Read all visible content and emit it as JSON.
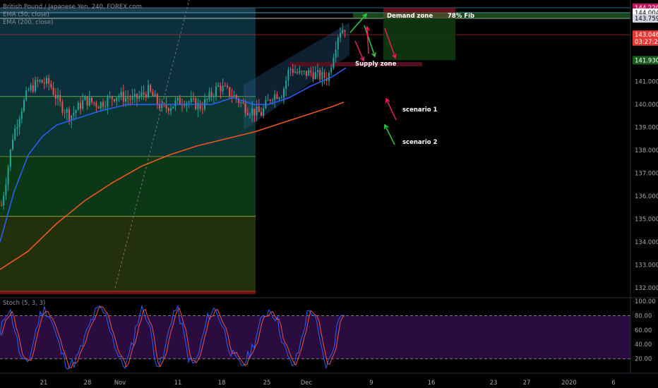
{
  "header": {
    "title": "British Pound / Japanese Yen, 240, FOREX.com",
    "ema1_label": "EMA (50, close)",
    "ema2_label": "EMA (200, close)",
    "stoch_label": "Stoch (5, 3, 3)"
  },
  "chart_data": [
    {
      "type": "candlestick",
      "ylim": [
        131.7,
        144.4
      ],
      "y_ticks": [
        132.0,
        133.0,
        134.0,
        135.0,
        136.0,
        137.0,
        138.0,
        139.0,
        140.0,
        141.0
      ],
      "y_tick_labels": [
        "132.000",
        "133.000",
        "134.000",
        "135.000",
        "136.000",
        "137.000",
        "138.000",
        "139.000",
        "140.000",
        "141.000"
      ],
      "x_tick_labels": [
        "21",
        "28",
        "Nov",
        "11",
        "18",
        "25",
        "Dec",
        "9",
        "16",
        "23",
        "27",
        "2020",
        "6"
      ],
      "price_labels": [
        {
          "value": 144.22,
          "text": "144.220",
          "bg": "#c2185b"
        },
        {
          "value": 144.004,
          "text": "144.004",
          "bg": "#ffffff"
        },
        {
          "value": 143.759,
          "text": "143.759",
          "bg": "#d1d4dc"
        },
        {
          "value": 143.046,
          "text": "143.046",
          "bg": "#e53935"
        },
        {
          "value": 142.75,
          "text": "03:27:20",
          "bg": "#e53935"
        },
        {
          "value": 141.93,
          "text": "141.930",
          "bg": "#1b5e20"
        }
      ],
      "fib_levels": [
        144.22,
        144.004,
        143.759,
        140.35,
        137.73,
        135.12,
        131.85
      ],
      "annotations": {
        "demand_zone": "Demand zone",
        "fib": "78% Fib",
        "supply_zone": "Supply zone",
        "scenario1": "scenario 1",
        "scenario2": "scenario 2"
      },
      "colors": {
        "up": "#26a69a",
        "down": "#ef5350",
        "ema50": "#2962ff",
        "ema200": "#ff5722"
      }
    },
    {
      "type": "line",
      "name": "Stoch",
      "ylim": [
        0,
        105
      ],
      "y_ticks": [
        20,
        40,
        60,
        80,
        100
      ],
      "y_tick_labels": [
        "20.00",
        "40.00",
        "60.00",
        "80.00",
        "100.00"
      ],
      "overbought": 80,
      "oversold": 20,
      "colors": {
        "k": "#2962ff",
        "d": "#ef5350",
        "band": "#2a0c3e"
      }
    }
  ]
}
